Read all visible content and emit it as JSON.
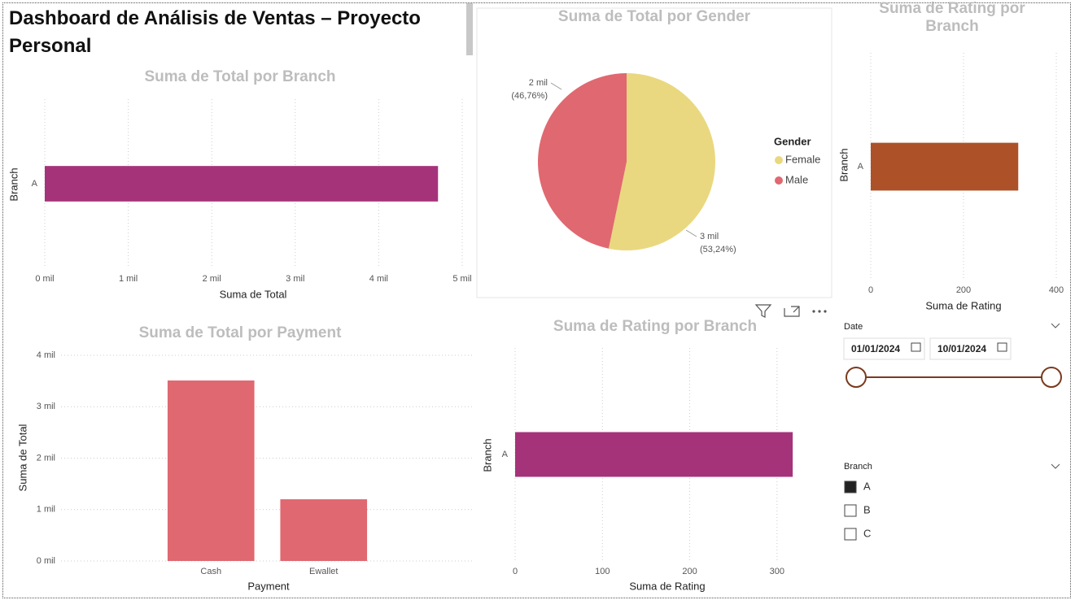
{
  "dashboard_title": "Dashboard de Análisis de Ventas – Proyecto Personal",
  "chart_data": [
    {
      "type": "hbar",
      "title": "Suma de Total por Branch",
      "categories": [
        "A"
      ],
      "values": [
        4710
      ],
      "color": "#a5337a",
      "xlim": [
        0,
        5000
      ],
      "xticks": [
        {
          "value": 0,
          "label": "0 mil"
        },
        {
          "value": 1000,
          "label": "1 mil"
        },
        {
          "value": 2000,
          "label": "2 mil"
        },
        {
          "value": 3000,
          "label": "3 mil"
        },
        {
          "value": 4000,
          "label": "4 mil"
        },
        {
          "value": 5000,
          "label": "5 mil"
        }
      ],
      "x_label": "Suma de Total",
      "y_label": "Branch",
      "grid": true
    },
    {
      "type": "pie",
      "title": "Suma de Total por Gender",
      "categories": [
        "Female",
        "Male"
      ],
      "values": [
        2508,
        2202
      ],
      "value_labels": [
        "3 mil",
        "2 mil"
      ],
      "percent_labels": [
        "(53,24%)",
        "(46,76%)"
      ],
      "colors": [
        "#e9d87f",
        "#e06870"
      ],
      "legend_title": "Gender"
    },
    {
      "type": "hbar",
      "title": "Suma de Rating por Branch",
      "categories": [
        "A"
      ],
      "values": [
        318
      ],
      "color": "#ad5129",
      "xlim": [
        0,
        400
      ],
      "xticks": [
        0,
        200,
        400
      ],
      "x_label": "Suma de Rating",
      "y_label": "Branch",
      "grid": true
    },
    {
      "type": "vbar",
      "title": "Suma de Total por Payment",
      "categories": [
        "Cash",
        "Ewallet"
      ],
      "values": [
        3510,
        1200
      ],
      "color": "#e06870",
      "ylim": [
        0,
        4000
      ],
      "yticks": [
        {
          "value": 0,
          "label": "0 mil"
        },
        {
          "value": 1000,
          "label": "1 mil"
        },
        {
          "value": 2000,
          "label": "2 mil"
        },
        {
          "value": 3000,
          "label": "3 mil"
        },
        {
          "value": 4000,
          "label": "4 mil"
        }
      ],
      "x_label": "Payment",
      "y_label": "Suma de Total",
      "grid": true
    },
    {
      "type": "hbar",
      "title": "Suma de Rating por Branch",
      "categories": [
        "A"
      ],
      "values": [
        318
      ],
      "color": "#a5337a",
      "xlim": [
        0,
        330
      ],
      "xticks": [
        0,
        100,
        200,
        300
      ],
      "x_label": "Suma de Rating",
      "y_label": "Branch",
      "grid": true
    }
  ],
  "date_slicer": {
    "title": "Date",
    "start": "01/01/2024",
    "end": "10/01/2024"
  },
  "branch_slicer": {
    "title": "Branch",
    "items": [
      "A",
      "B",
      "C"
    ],
    "selected": [
      "A"
    ]
  }
}
